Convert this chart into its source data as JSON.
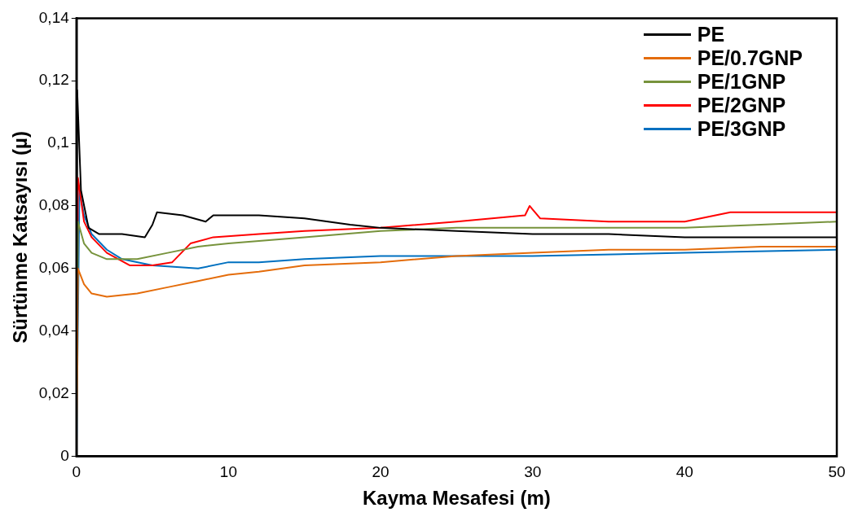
{
  "chart_data": {
    "type": "line",
    "xlabel": "Kayma Mesafesi (m)",
    "ylabel": "Sürtünme Katsayısı (µ)",
    "xlim": [
      0,
      50
    ],
    "xticks": [
      0,
      10,
      20,
      30,
      40,
      50
    ],
    "ylim": [
      0,
      0.14
    ],
    "yticks": [
      0,
      {
        "value": 0.02,
        "label": "0,02"
      },
      {
        "value": 0.04,
        "label": "0,04"
      },
      {
        "value": 0.06,
        "label": "0,06"
      },
      {
        "value": 0.08,
        "label": "0,08"
      },
      {
        "value": 0.1,
        "label": "0,1"
      },
      {
        "value": 0.12,
        "label": "0,12"
      },
      {
        "value": 0.14,
        "label": "0,14"
      }
    ],
    "grid": false,
    "legend": "top right",
    "marker": "none",
    "line_style": "solid",
    "series": [
      {
        "name": "PE",
        "color": "#000000",
        "x": [
          0,
          0.05,
          0.3,
          0.8,
          1.5,
          3,
          4.5,
          5,
          5.3,
          7,
          8.5,
          9,
          12,
          15,
          18,
          20,
          25,
          30,
          35,
          40,
          45,
          50
        ],
        "values": [
          0,
          0.117,
          0.085,
          0.073,
          0.071,
          0.071,
          0.07,
          0.074,
          0.078,
          0.077,
          0.075,
          0.077,
          0.077,
          0.076,
          0.074,
          0.073,
          0.072,
          0.071,
          0.071,
          0.07,
          0.07,
          0.07
        ]
      },
      {
        "name": "PE/0.7GNP",
        "color": "#e46c0a",
        "x": [
          0,
          0.1,
          0.5,
          1,
          2,
          4,
          6,
          8,
          10,
          12,
          15,
          20,
          25,
          30,
          35,
          40,
          45,
          50
        ],
        "values": [
          0,
          0.06,
          0.055,
          0.052,
          0.051,
          0.052,
          0.054,
          0.056,
          0.058,
          0.059,
          0.061,
          0.062,
          0.064,
          0.065,
          0.066,
          0.066,
          0.067,
          0.067
        ]
      },
      {
        "name": "PE/1GNP",
        "color": "#77933c",
        "x": [
          0,
          0.1,
          0.5,
          1,
          2,
          4,
          6,
          8,
          10,
          15,
          20,
          25,
          30,
          35,
          40,
          45,
          50
        ],
        "values": [
          0,
          0.075,
          0.068,
          0.065,
          0.063,
          0.063,
          0.065,
          0.067,
          0.068,
          0.07,
          0.072,
          0.073,
          0.073,
          0.073,
          0.073,
          0.074,
          0.075
        ]
      },
      {
        "name": "PE/2GNP",
        "color": "#ff0000",
        "x": [
          0,
          0.1,
          0.5,
          1,
          2,
          3.5,
          5,
          6.3,
          7.5,
          9,
          12,
          15,
          20,
          25,
          29.5,
          29.8,
          30.5,
          35,
          40,
          43,
          50
        ],
        "values": [
          0,
          0.089,
          0.075,
          0.07,
          0.065,
          0.061,
          0.061,
          0.062,
          0.068,
          0.07,
          0.071,
          0.072,
          0.073,
          0.075,
          0.077,
          0.08,
          0.076,
          0.075,
          0.075,
          0.078,
          0.078
        ]
      },
      {
        "name": "PE/3GNP",
        "color": "#0070c0",
        "x": [
          0,
          0.2,
          0.5,
          1,
          2,
          3,
          5,
          8,
          10,
          12,
          15,
          20,
          30,
          40,
          50
        ],
        "values": [
          0,
          0.085,
          0.077,
          0.071,
          0.066,
          0.063,
          0.061,
          0.06,
          0.062,
          0.062,
          0.063,
          0.064,
          0.064,
          0.065,
          0.066
        ]
      }
    ]
  }
}
